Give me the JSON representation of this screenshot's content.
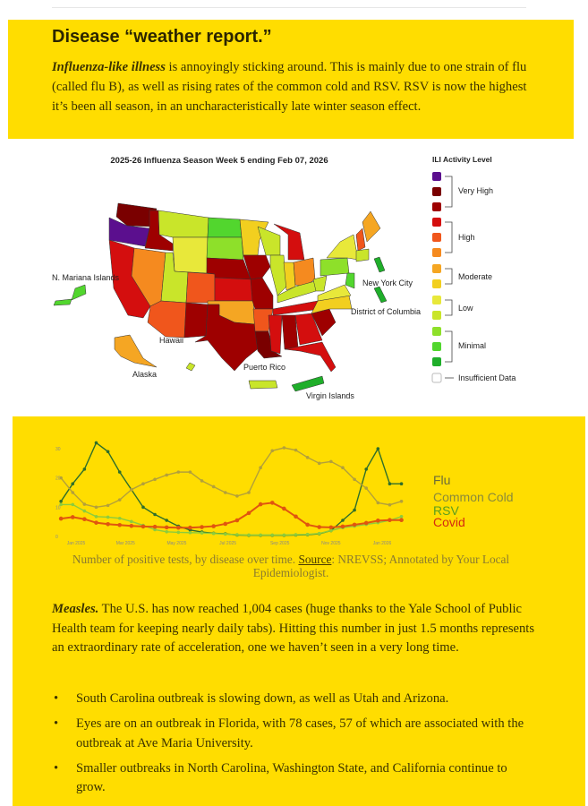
{
  "intro": {
    "heading": "Disease “weather report.”",
    "lead": "Influenza-like illness",
    "text": " is annoyingly sticking around. This is mainly due to one strain of flu (called flu B), as well as rising rates of the common cold and RSV. RSV is now the highest it’s been all season, in an uncharacteristically late winter season effect."
  },
  "map": {
    "title": "2025-26 Influenza Season Week 5 ending Feb 07, 2026",
    "labels": {
      "nmi": "N. Mariana Islands",
      "nyc": "New York City",
      "dc": "District of Columbia",
      "hawaii": "Hawaii",
      "alaska": "Alaska",
      "pr": "Puerto Rico",
      "vi": "Virgin Islands"
    },
    "legend": {
      "title": "ILI Activity Level",
      "levels": [
        "Very High",
        "High",
        "Moderate",
        "Low",
        "Minimal",
        "Insufficient Data"
      ],
      "colors": [
        "#5B0F8E",
        "#7A0000",
        "#9E0000",
        "#D40E0E",
        "#F0561C",
        "#F58A1F",
        "#F5A623",
        "#F2CF1F",
        "#E8E83A",
        "#C9E52A",
        "#8EE02A",
        "#52D62E",
        "#1FAE2A",
        "#ffffff"
      ]
    }
  },
  "chart_data": {
    "type": "line",
    "caption_pre": "Number of positive tests, by disease over time. ",
    "source_label": "Source",
    "caption_post": ": NREVSS; Annotated by Your Local Epidemiologist.",
    "ylim": [
      0,
      30
    ],
    "yticks": [
      "0",
      "10",
      "20",
      "30"
    ],
    "xticks": [
      {
        "label": "Jan 2025",
        "date": "2025-01-01"
      },
      {
        "label": "Mar 2025",
        "date": "2025-03-01"
      },
      {
        "label": "May 2025",
        "date": "2025-05-01"
      },
      {
        "label": "Jul 2025",
        "date": "2025-07-01"
      },
      {
        "label": "Sep 2025",
        "date": "2025-09-01"
      },
      {
        "label": "Nov 2025",
        "date": "2025-11-01"
      },
      {
        "label": "Jan 2026",
        "date": "2026-01-01"
      }
    ],
    "x": [
      "2024-12-14",
      "2024-12-28",
      "2025-01-11",
      "2025-01-25",
      "2025-02-08",
      "2025-02-22",
      "2025-03-08",
      "2025-03-22",
      "2025-04-05",
      "2025-04-19",
      "2025-05-03",
      "2025-05-17",
      "2025-05-31",
      "2025-06-14",
      "2025-06-28",
      "2025-07-12",
      "2025-07-26",
      "2025-08-09",
      "2025-08-23",
      "2025-09-06",
      "2025-09-20",
      "2025-10-04",
      "2025-10-18",
      "2025-11-01",
      "2025-11-15",
      "2025-11-29",
      "2025-12-13",
      "2025-12-27",
      "2026-01-10",
      "2026-01-24"
    ],
    "series": [
      {
        "name": "Flu",
        "color": "#2f6e2a",
        "label_color": "#6b6b3a",
        "values": [
          12,
          18,
          23,
          32,
          29,
          22,
          16,
          10,
          7.5,
          5.5,
          3.5,
          2.2,
          1.5,
          1.1,
          0.9,
          0.5,
          0.4,
          0.4,
          0.4,
          0.4,
          0.5,
          0.6,
          0.9,
          2,
          5.5,
          9,
          23,
          30,
          18,
          18
        ]
      },
      {
        "name": "Common Cold",
        "color": "#b3a03a",
        "label_color": "#8a8a3a",
        "values": [
          20,
          15,
          11,
          10,
          10.6,
          12.5,
          16,
          18,
          19.5,
          21,
          22,
          22,
          19,
          17,
          15,
          13.8,
          15,
          23.5,
          29.3,
          30.3,
          29.5,
          27,
          25,
          25.6,
          23.5,
          19.5,
          16.5,
          11.5,
          10.8,
          12
        ]
      },
      {
        "name": "RSV",
        "color": "#8ccc3c",
        "label_color": "#5a9e1e",
        "values": [
          10.9,
          10.9,
          8.7,
          6.8,
          6.6,
          6.2,
          5.1,
          3.8,
          2.3,
          1.6,
          1.4,
          1.3,
          1.2,
          1,
          0.8,
          0.6,
          0.5,
          0.5,
          0.5,
          0.5,
          0.6,
          0.7,
          1,
          2,
          3,
          3.5,
          4.1,
          4.7,
          5.5,
          6.8
        ]
      },
      {
        "name": "Covid",
        "color": "#e0550f",
        "label_color": "#d42a10",
        "values": [
          6.1,
          6.6,
          5.9,
          4.7,
          4.2,
          3.9,
          3.6,
          3.4,
          3.3,
          3.1,
          3,
          3,
          3.2,
          3.5,
          4.3,
          5.5,
          8,
          11,
          11.5,
          9.5,
          6.8,
          4,
          3.2,
          3.1,
          3.4,
          4,
          4.6,
          5.4,
          5.6,
          5.6
        ]
      }
    ]
  },
  "measles": {
    "lead": "Measles.",
    "text": " The U.S. has now reached 1,004 cases (huge thanks to the Yale School of Public Health team for keeping nearly daily tabs). Hitting this number in just 1.5 months represents an extraordinary rate of acceleration, one we haven’t seen in a very long time.",
    "bullets": [
      "South Carolina outbreak is slowing down, as well as Utah and Arizona.",
      "Eyes are on an outbreak in Florida, with 78 cases, 57 of which are associated with the outbreak at Ave Maria University.",
      "Smaller outbreaks in North Carolina, Washington State, and California continue to grow."
    ]
  }
}
